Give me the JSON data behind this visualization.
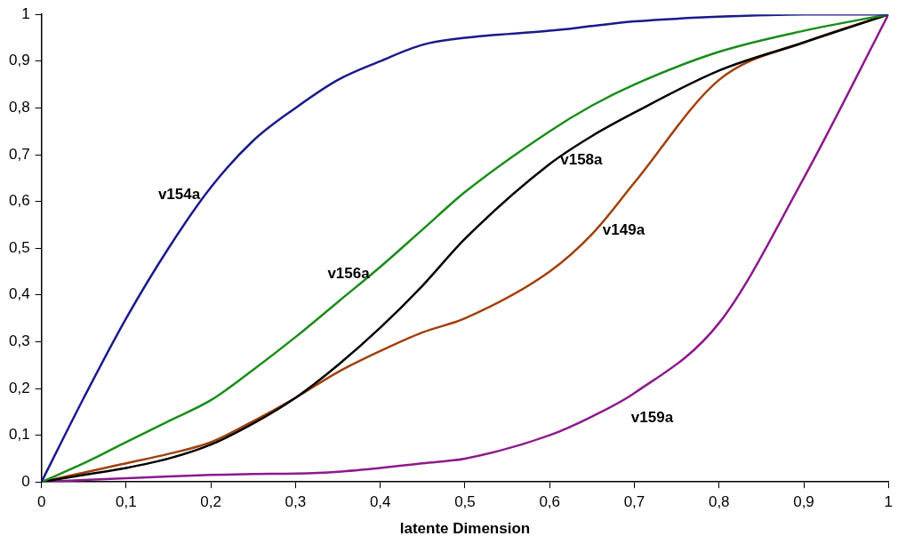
{
  "chart_data": {
    "type": "line",
    "xlabel": "latente Dimension",
    "xlim": [
      0,
      1
    ],
    "ylim": [
      0,
      1
    ],
    "xticks": [
      0,
      {
        "value": 0.1,
        "label": "0,1"
      },
      {
        "value": 0.2,
        "label": "0,2"
      },
      {
        "value": 0.3,
        "label": "0,3"
      },
      {
        "value": 0.4,
        "label": "0,4"
      },
      {
        "value": 0.5,
        "label": "0,5"
      },
      {
        "value": 0.6,
        "label": "0,6"
      },
      {
        "value": 0.7,
        "label": "0,7"
      },
      {
        "value": 0.8,
        "label": "0,8"
      },
      {
        "value": 0.9,
        "label": "0,9"
      },
      1
    ],
    "yticks": [
      0,
      {
        "value": 0.1,
        "label": "0,1"
      },
      {
        "value": 0.2,
        "label": "0,2"
      },
      {
        "value": 0.3,
        "label": "0,3"
      },
      {
        "value": 0.4,
        "label": "0,4"
      },
      {
        "value": 0.5,
        "label": "0,5"
      },
      {
        "value": 0.6,
        "label": "0,6"
      },
      {
        "value": 0.7,
        "label": "0,7"
      },
      {
        "value": 0.8,
        "label": "0,8"
      },
      {
        "value": 0.9,
        "label": "0,9"
      },
      1
    ],
    "x": [
      0,
      0.05,
      0.1,
      0.15,
      0.2,
      0.25,
      0.3,
      0.35,
      0.4,
      0.45,
      0.5,
      0.6,
      0.65,
      0.7,
      0.8,
      0.9,
      1
    ],
    "grid": false,
    "legend": false,
    "marker": "none",
    "line_style": "solid",
    "series": [
      {
        "color": "#1a1a8c",
        "values": [
          0,
          0.18,
          0.35,
          0.5,
          0.63,
          0.73,
          0.8,
          0.86,
          0.9,
          0.935,
          0.95,
          0.965,
          0.975,
          0.985,
          0.995,
          1,
          1
        ]
      },
      {
        "color": "#1a8c1a",
        "values": [
          0,
          0.04,
          0.085,
          0.13,
          0.175,
          0.24,
          0.31,
          0.385,
          0.46,
          0.54,
          0.62,
          0.75,
          0.805,
          0.85,
          0.92,
          0.965,
          1
        ]
      },
      {
        "color": "#000000",
        "values": [
          0,
          0.015,
          0.03,
          0.05,
          0.08,
          0.125,
          0.18,
          0.25,
          0.33,
          0.42,
          0.52,
          0.68,
          0.74,
          0.79,
          0.88,
          0.94,
          1
        ]
      },
      {
        "color": "#a0400a",
        "values": [
          0,
          0.02,
          0.04,
          0.06,
          0.085,
          0.13,
          0.18,
          0.235,
          0.28,
          0.32,
          0.35,
          0.45,
          0.53,
          0.64,
          0.86,
          0.94,
          1
        ]
      },
      {
        "color": "#8c1a8c",
        "values": [
          0,
          0.004,
          0.008,
          0.012,
          0.015,
          0.017,
          0.018,
          0.022,
          0.03,
          0.04,
          0.05,
          0.1,
          0.14,
          0.19,
          0.34,
          0.65,
          1
        ]
      }
    ],
    "annotations": [
      {
        "text": "v154a",
        "x": 0.2,
        "y": 0.63
      },
      {
        "text": "v156a",
        "x": 0.4,
        "y": 0.46
      },
      {
        "text": "v158a",
        "x": 0.6,
        "y": 0.68
      },
      {
        "text": "v149a",
        "x": 0.65,
        "y": 0.53
      },
      {
        "text": "v159a",
        "x": 0.7,
        "y": 0.19
      }
    ]
  }
}
